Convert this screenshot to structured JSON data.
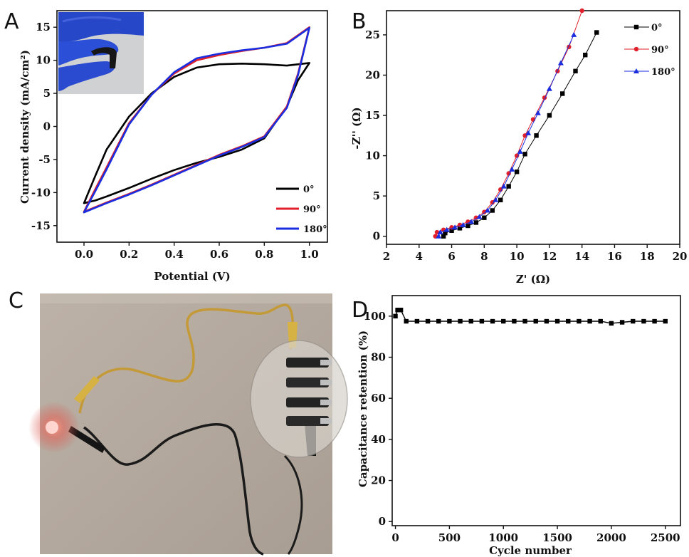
{
  "panels": {
    "a": {
      "label": "A"
    },
    "b": {
      "label": "B"
    },
    "c": {
      "label": "C"
    },
    "d": {
      "label": "D"
    }
  },
  "chart_data": [
    {
      "panel": "A",
      "type": "line",
      "xlabel": "Potential (V)",
      "ylabel": "Current density (mA/cm²)",
      "xlim": [
        -0.12,
        1.08
      ],
      "ylim": [
        -17.5,
        17.5
      ],
      "xticks": [
        0.0,
        0.2,
        0.4,
        0.6,
        0.8,
        1.0
      ],
      "xtick_labels": [
        "0.0",
        "0.2",
        "0.4",
        "0.6",
        "0.8",
        "1.0"
      ],
      "yticks": [
        -15,
        -10,
        -5,
        0,
        5,
        10,
        15
      ],
      "ytick_labels": [
        "-15",
        "-10",
        "-5",
        "0",
        "5",
        "10",
        "15"
      ],
      "legend_position": "bottom-right",
      "inset": "photo of the bent device held between gloved fingers",
      "series": [
        {
          "name": "0°",
          "color": "#000000",
          "upper": {
            "x": [
              0.0,
              0.05,
              0.1,
              0.2,
              0.3,
              0.4,
              0.5,
              0.6,
              0.7,
              0.8,
              0.9,
              1.0
            ],
            "y": [
              -11.6,
              -7.5,
              -3.5,
              1.5,
              5.0,
              7.5,
              8.9,
              9.4,
              9.5,
              9.4,
              9.2,
              9.6
            ]
          },
          "lower": {
            "x": [
              1.0,
              0.95,
              0.9,
              0.8,
              0.7,
              0.6,
              0.5,
              0.4,
              0.3,
              0.2,
              0.1,
              0.05,
              0.0
            ],
            "y": [
              9.6,
              7.0,
              3.0,
              -1.8,
              -3.5,
              -4.6,
              -5.5,
              -6.6,
              -7.9,
              -9.3,
              -10.6,
              -11.2,
              -11.6
            ]
          }
        },
        {
          "name": "90°",
          "color": "#e0202a",
          "upper": {
            "x": [
              0.0,
              0.05,
              0.1,
              0.2,
              0.3,
              0.4,
              0.5,
              0.6,
              0.7,
              0.8,
              0.9,
              1.0
            ],
            "y": [
              -12.9,
              -9.5,
              -6.2,
              0.5,
              4.8,
              8.0,
              10.0,
              10.8,
              11.4,
              11.9,
              12.6,
              15.0
            ]
          },
          "lower": {
            "x": [
              1.0,
              0.95,
              0.9,
              0.8,
              0.7,
              0.6,
              0.5,
              0.4,
              0.3,
              0.2,
              0.1,
              0.05,
              0.0
            ],
            "y": [
              15.0,
              8.0,
              3.0,
              -1.5,
              -3.0,
              -4.3,
              -5.8,
              -7.3,
              -8.8,
              -10.2,
              -11.5,
              -12.2,
              -12.9
            ]
          }
        },
        {
          "name": "180°",
          "color": "#1a2ee0",
          "upper": {
            "x": [
              0.0,
              0.05,
              0.1,
              0.2,
              0.3,
              0.4,
              0.5,
              0.6,
              0.7,
              0.8,
              0.9,
              1.0
            ],
            "y": [
              -13.0,
              -9.8,
              -6.5,
              0.3,
              4.8,
              8.2,
              10.3,
              11.0,
              11.5,
              11.9,
              12.5,
              14.9
            ]
          },
          "lower": {
            "x": [
              1.0,
              0.95,
              0.9,
              0.8,
              0.7,
              0.6,
              0.5,
              0.4,
              0.3,
              0.2,
              0.1,
              0.05,
              0.0
            ],
            "y": [
              14.9,
              7.8,
              2.8,
              -1.6,
              -3.1,
              -4.4,
              -5.9,
              -7.4,
              -8.9,
              -10.3,
              -11.6,
              -12.3,
              -13.0
            ]
          }
        }
      ]
    },
    {
      "panel": "B",
      "type": "scatter",
      "xlabel": "Z' (Ω)",
      "ylabel": "-Z'' (Ω)",
      "xlim": [
        2,
        20
      ],
      "ylim": [
        -1,
        28
      ],
      "xticks": [
        2,
        4,
        6,
        8,
        10,
        12,
        14,
        16,
        18,
        20
      ],
      "xtick_labels": [
        "2",
        "4",
        "6",
        "8",
        "10",
        "12",
        "14",
        "16",
        "18",
        "20"
      ],
      "yticks": [
        0,
        5,
        10,
        15,
        20,
        25
      ],
      "ytick_labels": [
        "0",
        "5",
        "10",
        "15",
        "20",
        "25"
      ],
      "legend_position": "top-right",
      "series": [
        {
          "name": "0°",
          "color": "#000000",
          "marker": "square",
          "x": [
            5.5,
            5.6,
            6.0,
            6.5,
            7.0,
            7.5,
            8.0,
            8.5,
            9.0,
            9.5,
            10.0,
            10.5,
            11.2,
            12.0,
            12.8,
            13.6,
            14.2,
            14.9
          ],
          "y": [
            0.0,
            0.4,
            0.7,
            1.0,
            1.3,
            1.7,
            2.3,
            3.2,
            4.5,
            6.2,
            8.0,
            10.2,
            12.5,
            15.0,
            17.7,
            20.5,
            22.5,
            25.3
          ]
        },
        {
          "name": "90°",
          "color": "#e0202a",
          "marker": "circle",
          "x": [
            5.0,
            5.1,
            5.5,
            6.0,
            6.5,
            7.0,
            7.5,
            8.0,
            8.5,
            9.0,
            9.5,
            10.0,
            10.5,
            11.0,
            11.7,
            12.5,
            13.2,
            14.0
          ],
          "y": [
            0.0,
            0.5,
            0.8,
            1.1,
            1.4,
            1.8,
            2.3,
            3.0,
            4.2,
            5.8,
            7.8,
            10.0,
            12.5,
            14.5,
            17.2,
            20.5,
            23.5,
            28.0
          ]
        },
        {
          "name": "180°",
          "color": "#1a2ee0",
          "marker": "triangle",
          "x": [
            5.2,
            5.3,
            5.7,
            6.2,
            6.7,
            7.2,
            7.7,
            8.2,
            8.7,
            9.2,
            9.7,
            10.2,
            10.7,
            11.3,
            12.0,
            12.7,
            13.5
          ],
          "y": [
            0.0,
            0.5,
            0.8,
            1.1,
            1.4,
            1.8,
            2.4,
            3.2,
            4.5,
            6.2,
            8.3,
            10.5,
            12.8,
            15.3,
            18.3,
            21.5,
            25.0
          ]
        }
      ]
    },
    {
      "panel": "D",
      "type": "scatter",
      "xlabel": "Cycle number",
      "ylabel": "Capacitance retention (%)",
      "xlim": [
        -30,
        2640
      ],
      "ylim": [
        -2,
        110
      ],
      "xticks": [
        0,
        500,
        1000,
        1500,
        2000,
        2500
      ],
      "xtick_labels": [
        "0",
        "500",
        "1000",
        "1500",
        "2000",
        "2500"
      ],
      "yticks": [
        0,
        20,
        40,
        60,
        80,
        100
      ],
      "ytick_labels": [
        "0",
        "20",
        "40",
        "60",
        "80",
        "100"
      ],
      "series": [
        {
          "color": "#000000",
          "marker": "square",
          "x": [
            0,
            20,
            50,
            100,
            200,
            300,
            400,
            500,
            600,
            700,
            800,
            900,
            1000,
            1100,
            1200,
            1300,
            1400,
            1500,
            1600,
            1700,
            1800,
            1900,
            2000,
            2100,
            2200,
            2300,
            2400,
            2500
          ],
          "y": [
            100,
            103,
            103,
            97.5,
            97.5,
            97.5,
            97.5,
            97.5,
            97.5,
            97.5,
            97.5,
            97.5,
            97.5,
            97.5,
            97.5,
            97.5,
            97.5,
            97.5,
            97.5,
            97.5,
            97.5,
            97.5,
            96.5,
            97,
            97.5,
            97.5,
            97.5,
            97.5
          ]
        }
      ]
    }
  ]
}
